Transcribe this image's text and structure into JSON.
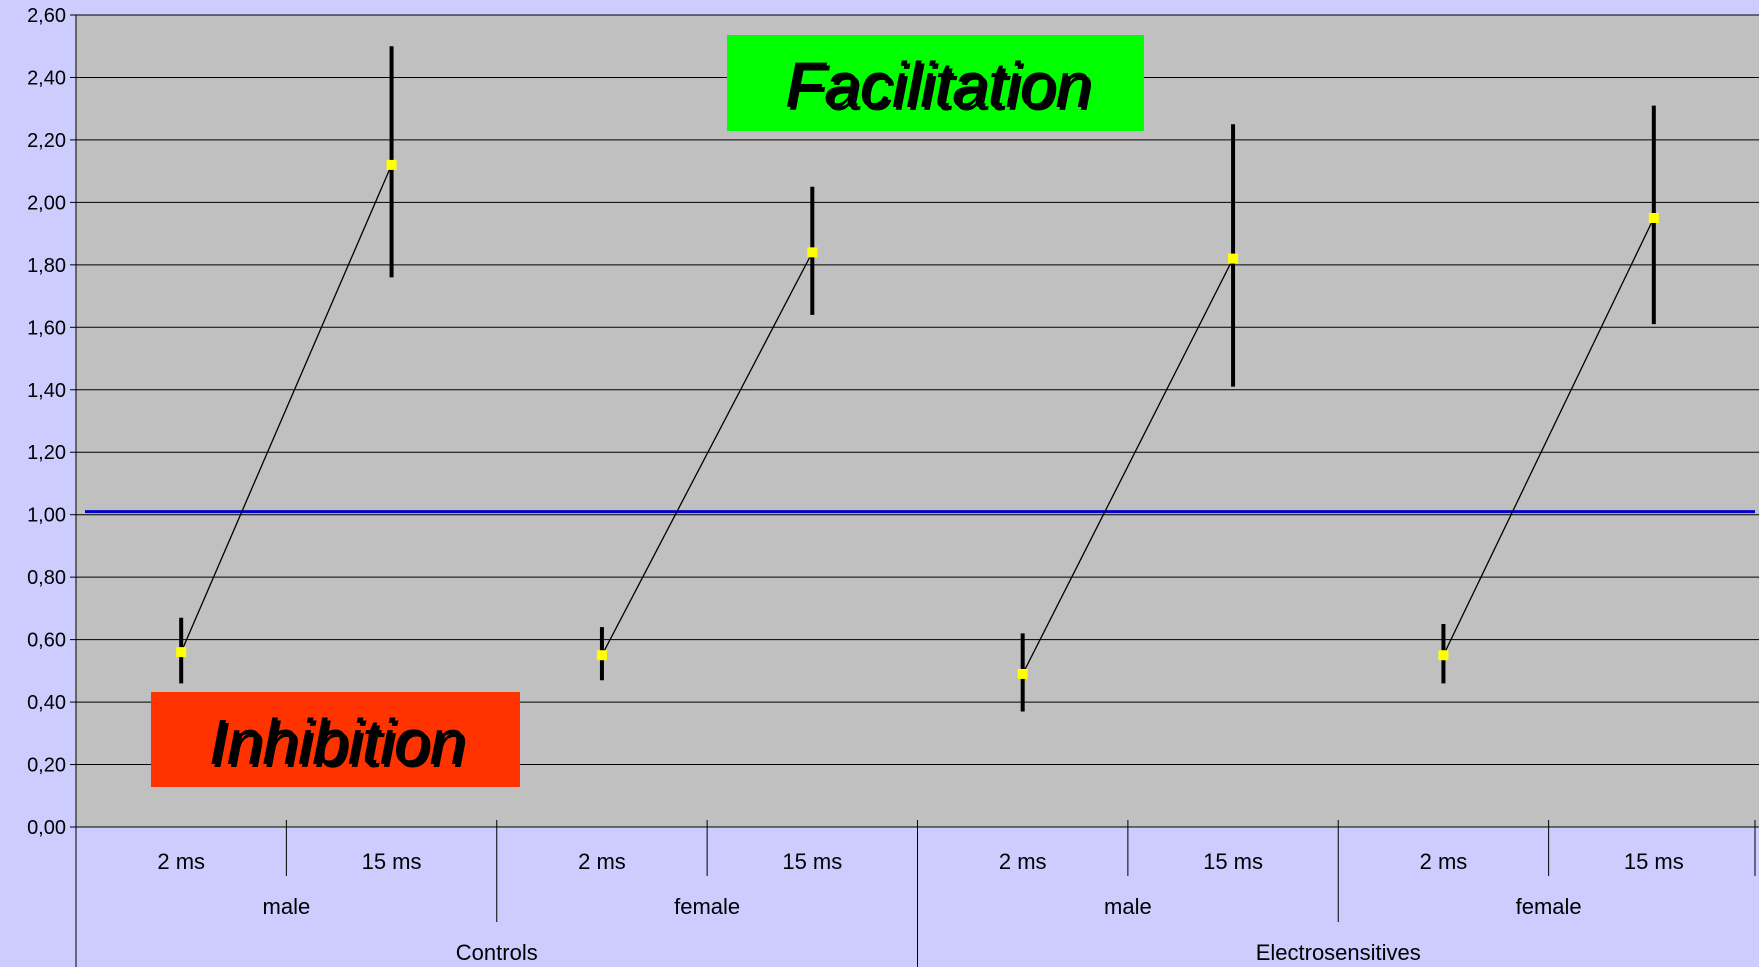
{
  "chart_data": {
    "type": "line",
    "title": "",
    "xlabel": "",
    "ylabel": "",
    "ylim": [
      0,
      2.6
    ],
    "y_ticks": [
      "0,00",
      "0,20",
      "0,40",
      "0,60",
      "0,80",
      "1,00",
      "1,20",
      "1,40",
      "1,60",
      "1,80",
      "2,00",
      "2,20",
      "2,40",
      "2,60"
    ],
    "grid": true,
    "reference_line": 1.01,
    "categories_level1": [
      "2 ms",
      "15 ms",
      "2 ms",
      "15 ms",
      "2 ms",
      "15 ms",
      "2 ms",
      "15 ms"
    ],
    "categories_level2": [
      "male",
      "female",
      "male",
      "female"
    ],
    "categories_level3": [
      "Controls",
      "Electrosensitives"
    ],
    "groups": [
      {
        "mean": [
          0.56,
          2.12
        ],
        "low": [
          0.46,
          1.76
        ],
        "high": [
          0.67,
          2.5
        ]
      },
      {
        "mean": [
          0.55,
          1.84
        ],
        "low": [
          0.47,
          1.64
        ],
        "high": [
          0.64,
          2.05
        ]
      },
      {
        "mean": [
          0.49,
          1.82
        ],
        "low": [
          0.37,
          1.41
        ],
        "high": [
          0.62,
          2.25
        ]
      },
      {
        "mean": [
          0.55,
          1.95
        ],
        "low": [
          0.46,
          1.61
        ],
        "high": [
          0.65,
          2.31
        ]
      }
    ],
    "annotations": {
      "facilitation": "Facilitation",
      "inhibition": "Inhibition"
    },
    "colors": {
      "plot_bg": "#c0c0c0",
      "page_bg": "#ccccff",
      "marker": "#ffff00",
      "error_bar": "#000000",
      "reference": "#0000cc",
      "facilitation_bg": "#00ff00",
      "inhibition_bg": "#ff3300"
    }
  }
}
